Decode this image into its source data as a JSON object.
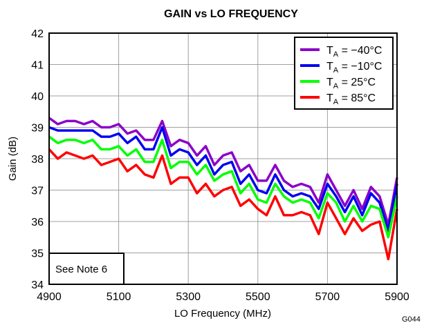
{
  "chart_data": {
    "type": "line",
    "title": "GAIN vs LO FREQUENCY",
    "xlabel": "LO Frequency (MHz)",
    "ylabel": "Gain (dB)",
    "xlim": [
      4900,
      5900
    ],
    "ylim": [
      34,
      42
    ],
    "xticks": [
      4900,
      5100,
      5300,
      5500,
      5700,
      5900
    ],
    "yticks": [
      34,
      35,
      36,
      37,
      38,
      39,
      40,
      41,
      42
    ],
    "grid": true,
    "legend_position": "top-right",
    "note": "See Note 6",
    "figure_code": "G044",
    "x": [
      4900,
      4925,
      4950,
      4975,
      5000,
      5025,
      5050,
      5075,
      5100,
      5125,
      5150,
      5175,
      5200,
      5225,
      5250,
      5275,
      5300,
      5325,
      5350,
      5375,
      5400,
      5425,
      5450,
      5475,
      5500,
      5525,
      5550,
      5575,
      5600,
      5625,
      5650,
      5675,
      5700,
      5725,
      5750,
      5775,
      5800,
      5825,
      5850,
      5875,
      5900
    ],
    "series": [
      {
        "name_main": "T",
        "name_sub": "A",
        "name_rest": " = −40°C",
        "color": "#8b00c8",
        "values": [
          39.3,
          39.1,
          39.2,
          39.2,
          39.1,
          39.2,
          39.0,
          39.0,
          39.1,
          38.8,
          38.9,
          38.6,
          38.6,
          39.2,
          38.4,
          38.6,
          38.5,
          38.1,
          38.4,
          37.8,
          38.1,
          38.2,
          37.6,
          37.8,
          37.3,
          37.3,
          37.8,
          37.3,
          37.1,
          37.2,
          37.1,
          36.6,
          37.5,
          37.0,
          36.5,
          37.0,
          36.4,
          37.1,
          36.8,
          35.9,
          37.4
        ]
      },
      {
        "name_main": "T",
        "name_sub": "A",
        "name_rest": " = −10°C",
        "color": "#0000f0",
        "values": [
          39.0,
          38.9,
          38.9,
          38.9,
          38.9,
          38.9,
          38.7,
          38.7,
          38.8,
          38.5,
          38.7,
          38.3,
          38.3,
          39.0,
          38.1,
          38.3,
          38.2,
          37.8,
          38.1,
          37.5,
          37.8,
          37.9,
          37.2,
          37.5,
          37.0,
          36.9,
          37.5,
          37.0,
          36.8,
          36.9,
          36.8,
          36.4,
          37.2,
          36.8,
          36.3,
          36.8,
          36.2,
          36.9,
          36.6,
          35.7,
          37.2
        ]
      },
      {
        "name_main": "T",
        "name_sub": "A",
        "name_rest": " = 25°C",
        "color": "#00ff00",
        "values": [
          38.7,
          38.5,
          38.6,
          38.6,
          38.5,
          38.6,
          38.3,
          38.3,
          38.4,
          38.1,
          38.3,
          37.9,
          37.9,
          38.6,
          37.7,
          37.9,
          37.9,
          37.5,
          37.8,
          37.3,
          37.5,
          37.6,
          36.9,
          37.2,
          36.7,
          36.6,
          37.2,
          36.8,
          36.6,
          36.7,
          36.6,
          36.1,
          36.9,
          36.6,
          36.0,
          36.5,
          36.0,
          36.5,
          36.4,
          35.5,
          36.8
        ]
      },
      {
        "name_main": "T",
        "name_sub": "A",
        "name_rest": " = 85°C",
        "color": "#ff0000",
        "values": [
          38.3,
          38.0,
          38.2,
          38.1,
          38.0,
          38.1,
          37.8,
          37.9,
          38.0,
          37.6,
          37.8,
          37.5,
          37.4,
          38.1,
          37.2,
          37.4,
          37.4,
          36.9,
          37.2,
          36.8,
          37.0,
          37.1,
          36.5,
          36.7,
          36.4,
          36.2,
          36.8,
          36.2,
          36.2,
          36.3,
          36.2,
          35.6,
          36.6,
          36.1,
          35.6,
          36.1,
          35.7,
          35.9,
          36.0,
          34.8,
          36.4
        ]
      }
    ]
  }
}
